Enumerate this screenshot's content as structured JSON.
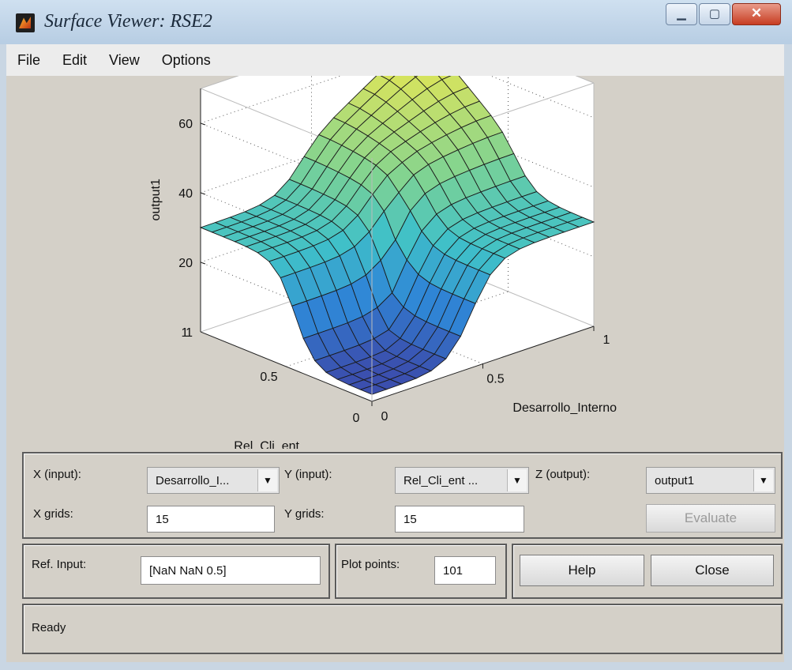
{
  "window": {
    "title": "Surface Viewer: RSE2",
    "minimize_glyph": "▁",
    "maximize_glyph": "▢",
    "close_glyph": "✕"
  },
  "menu": [
    "File",
    "Edit",
    "View",
    "Options"
  ],
  "chart_data": {
    "type": "surface",
    "zlabel": "output1",
    "xlabel": "Desarrollo_Interno",
    "ylabel": "Rel_Cli_ent",
    "x_ticks": [
      "0",
      "0.5",
      "1"
    ],
    "y_ticks": [
      "0",
      "0.5",
      "1"
    ],
    "z_ticks": [
      "20",
      "40",
      "60"
    ],
    "zlim": [
      0,
      70
    ],
    "colormap": [
      "#3b4fae",
      "#2f86d6",
      "#3fc0c9",
      "#7fd392",
      "#c6e06a",
      "#f6ec3f"
    ],
    "grid": "dotted",
    "xlabel_display": "Desarrollo_Interno",
    "ylabel_display": "Rel_Cli_ent"
  },
  "controls": {
    "x_input_label": "X (input):",
    "x_input_value": "Desarrollo_I...",
    "y_input_label": "Y (input):",
    "y_input_value": "Rel_Cli_ent ...",
    "z_output_label": "Z (output):",
    "z_output_value": "output1",
    "x_grids_label": "X grids:",
    "x_grids_value": "15",
    "y_grids_label": "Y grids:",
    "y_grids_value": "15",
    "evaluate_label": "Evaluate",
    "ref_input_label": "Ref. Input:",
    "ref_input_value": "[NaN NaN 0.5]",
    "plot_points_label": "Plot points:",
    "plot_points_value": "101",
    "help_label": "Help",
    "close_label": "Close",
    "status": "Ready"
  }
}
